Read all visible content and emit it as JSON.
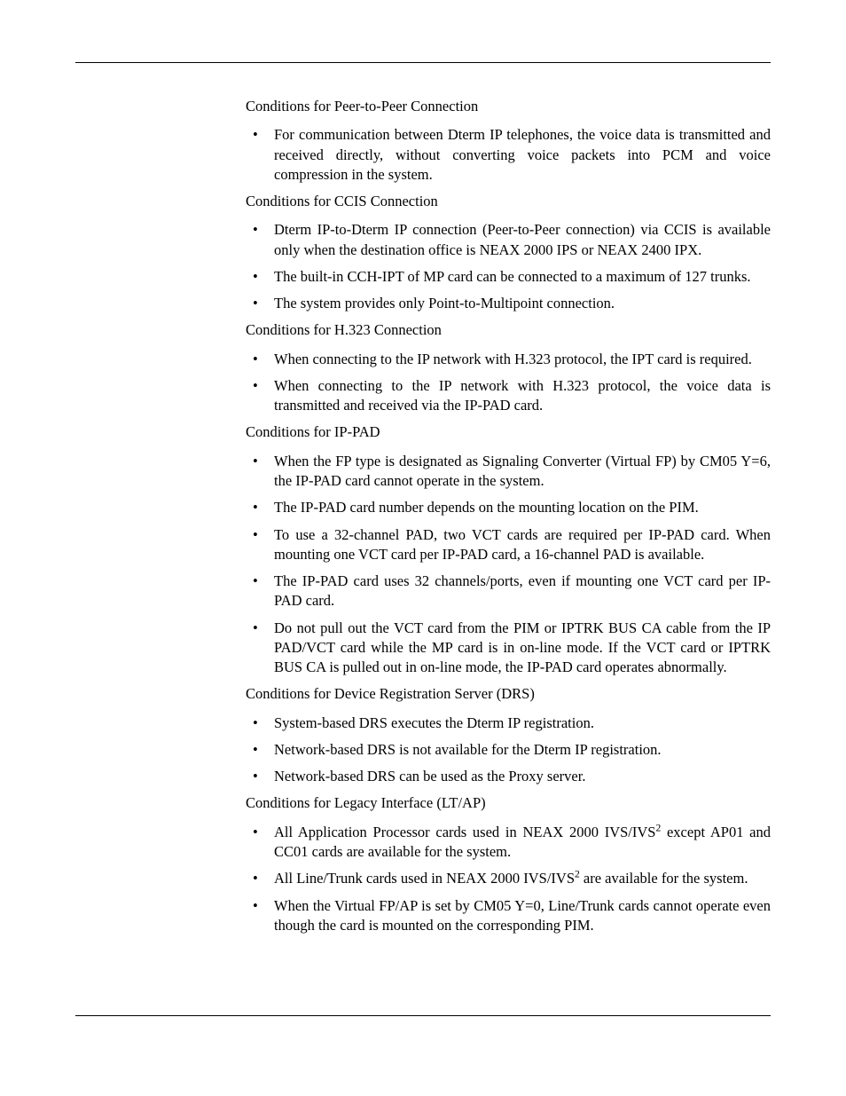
{
  "sections": [
    {
      "heading": "Conditions for Peer-to-Peer Connection",
      "items": [
        "For communication between Dterm IP telephones, the voice data is transmitted and received directly, without converting voice packets into PCM and voice compression in the system."
      ]
    },
    {
      "heading": "Conditions for CCIS Connection",
      "items": [
        "Dterm IP-to-Dterm IP connection (Peer-to-Peer connection) via CCIS is available only when the destination office is NEAX 2000 IPS or NEAX 2400 IPX.",
        "The built-in CCH-IPT of MP card can be connected to a maximum of 127 trunks.",
        "The system provides only Point-to-Multipoint connection."
      ]
    },
    {
      "heading": "Conditions for H.323 Connection",
      "items": [
        "When connecting to the IP network with H.323 protocol, the IPT card is required.",
        "When connecting to the IP network with H.323 protocol, the voice data is transmitted and received via the IP-PAD card."
      ]
    },
    {
      "heading": "Conditions for IP-PAD",
      "items": [
        "When the FP type is designated as Signaling Converter (Virtual FP) by CM05 Y=6, the IP-PAD card cannot operate in the system.",
        "The IP-PAD card number depends on the mounting location on the PIM.",
        "To use a 32-channel PAD, two VCT cards are required per IP-PAD card. When mounting one VCT card per IP-PAD card, a 16-channel PAD is available.",
        "The IP-PAD card uses 32 channels/ports, even if mounting one VCT card per IP-PAD card.",
        "Do not pull out the VCT card from the PIM or IPTRK BUS CA cable from the IP PAD/VCT card while the MP card is in on-line mode. If the VCT card or IPTRK BUS CA is pulled out in on-line mode, the IP-PAD card operates abnormally."
      ]
    },
    {
      "heading": "Conditions for Device Registration Server (DRS)",
      "items": [
        "System-based DRS executes the Dterm IP registration.",
        "Network-based DRS is not available for the Dterm IP registration.",
        "Network-based DRS can be used as the Proxy server."
      ]
    },
    {
      "heading": "Conditions for Legacy Interface (LT/AP)",
      "items": [
        "All Application Processor cards used in NEAX 2000 IVS/IVS__SUP2__ except AP01 and CC01 cards are available for the system.",
        "All Line/Trunk cards used in NEAX 2000 IVS/IVS__SUP2__ are available for the system.",
        "When the Virtual FP/AP is set by CM05 Y=0, Line/Trunk cards cannot operate even though the card is mounted on the corresponding PIM."
      ]
    }
  ],
  "bullet_char": "•"
}
